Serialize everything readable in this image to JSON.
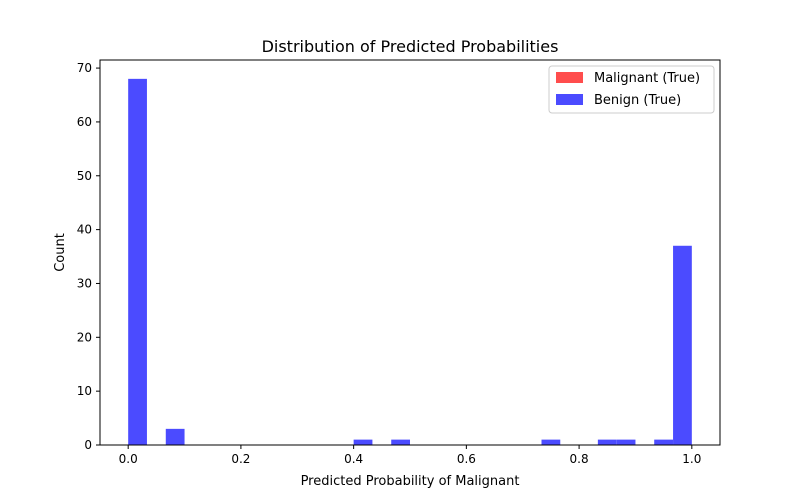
{
  "chart_data": {
    "type": "bar",
    "title": "Distribution of Predicted Probabilities",
    "xlabel": "Predicted Probability of Malignant",
    "ylabel": "Count",
    "xlim": [
      -0.05,
      1.05
    ],
    "ylim": [
      0,
      71.5
    ],
    "xticks": [
      "0.0",
      "0.2",
      "0.4",
      "0.6",
      "0.8",
      "1.0"
    ],
    "yticks": [
      "0",
      "10",
      "20",
      "30",
      "40",
      "50",
      "60",
      "70"
    ],
    "grid": false,
    "legend_position": "top-right",
    "bin_width": 0.0333,
    "series": [
      {
        "name": "Malignant (True)",
        "color": "#ff4d4d",
        "bins": []
      },
      {
        "name": "Benign (True)",
        "color": "#4b4bff",
        "bins": [
          {
            "x": 0.0,
            "count": 68
          },
          {
            "x": 0.0667,
            "count": 3
          },
          {
            "x": 0.4,
            "count": 1
          },
          {
            "x": 0.4667,
            "count": 1
          },
          {
            "x": 0.7333,
            "count": 1
          },
          {
            "x": 0.8333,
            "count": 1
          },
          {
            "x": 0.8667,
            "count": 1
          },
          {
            "x": 0.9333,
            "count": 1
          },
          {
            "x": 0.9667,
            "count": 37
          }
        ]
      }
    ]
  }
}
